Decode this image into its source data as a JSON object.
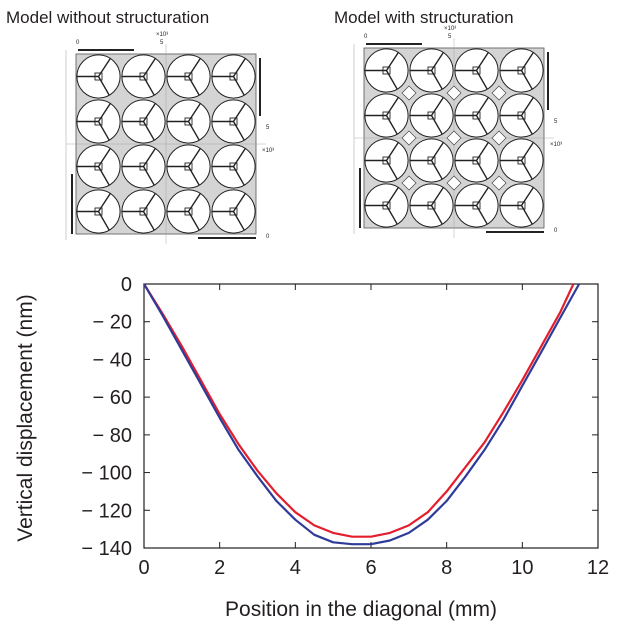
{
  "panels": [
    {
      "caption": "Model without structuration",
      "grid": [
        4,
        4
      ],
      "x_scale_label": "×10³",
      "x_tick_labels": [
        "0",
        "5"
      ],
      "y_scale_label": "×10³",
      "y_tick_labels": [
        "5",
        "0"
      ],
      "diamond_cutouts": false
    },
    {
      "caption": "Model with structuration",
      "grid": [
        4,
        4
      ],
      "x_scale_label": "×10³",
      "x_tick_labels": [
        "0",
        "5"
      ],
      "y_scale_label": "×10³",
      "y_tick_labels": [
        "5",
        "0"
      ],
      "diamond_cutouts": true
    }
  ],
  "colors": {
    "red_series": "#e31e2d",
    "blue_series": "#2e3b98",
    "panel_fill": "#d4d4d4",
    "text": "#231f20"
  },
  "chart_data": {
    "type": "line",
    "xlabel": "Position in the diagonal (mm)",
    "ylabel": "Vertical displacement (nm)",
    "xlim": [
      0,
      12
    ],
    "ylim": [
      -140,
      0
    ],
    "x_ticks": [
      "0",
      "2",
      "4",
      "6",
      "8",
      "10",
      "12"
    ],
    "y_ticks": [
      "0",
      "− 20",
      "− 40",
      "− 60",
      "− 80",
      "− 100",
      "− 120",
      "− 140"
    ],
    "grid": false,
    "series": [
      {
        "color": "#e31e2d",
        "x": [
          0,
          0.5,
          1,
          1.5,
          2,
          2.5,
          3,
          3.5,
          4,
          4.5,
          5,
          5.5,
          6,
          6.5,
          7,
          7.5,
          8,
          8.5,
          9,
          9.5,
          10,
          10.5,
          11,
          11.35
        ],
        "y": [
          0,
          -16,
          -33,
          -51,
          -69,
          -85,
          -99,
          -111,
          -121,
          -128,
          -132,
          -134,
          -134,
          -132,
          -128,
          -121,
          -110,
          -97,
          -84,
          -68,
          -51,
          -33,
          -15,
          0
        ]
      },
      {
        "color": "#2e3b98",
        "x": [
          0,
          0.5,
          1,
          1.5,
          2,
          2.5,
          3,
          3.5,
          4,
          4.5,
          5,
          5.5,
          6,
          6.5,
          7,
          7.5,
          8,
          8.5,
          9,
          9.5,
          10,
          10.5,
          11,
          11.5
        ],
        "y": [
          0,
          -17,
          -35,
          -53,
          -71,
          -88,
          -102,
          -115,
          -125,
          -133,
          -137,
          -138,
          -138,
          -136,
          -132,
          -125,
          -115,
          -102,
          -88,
          -72,
          -54,
          -36,
          -18,
          0
        ]
      }
    ]
  }
}
